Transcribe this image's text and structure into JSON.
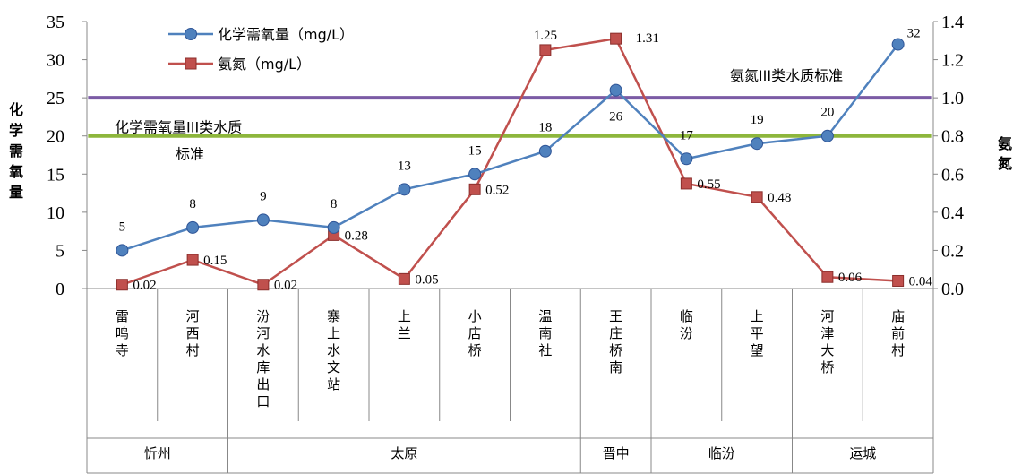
{
  "chart_data": {
    "type": "line",
    "categories": [
      "雷鸣寺",
      "河西村",
      "汾河水库出口",
      "寨上水文站",
      "上兰",
      "小店桥",
      "温南社",
      "王庄桥南",
      "临汾",
      "上平望",
      "河津大桥",
      "庙前村"
    ],
    "groups": [
      {
        "label": "忻州",
        "count": 2
      },
      {
        "label": "太原",
        "count": 5
      },
      {
        "label": "晋中",
        "count": 1
      },
      {
        "label": "临汾",
        "count": 2
      },
      {
        "label": "运城",
        "count": 2
      }
    ],
    "series": [
      {
        "name": "化学需氧量（mg/L）",
        "axis": "left",
        "color": "#4F81BD",
        "values": [
          5,
          8,
          9,
          8,
          13,
          15,
          18,
          26,
          17,
          19,
          20,
          32
        ],
        "labels": [
          "5",
          "8",
          "9",
          "8",
          "13",
          "15",
          "18",
          "26",
          "17",
          "19",
          "20",
          "32"
        ]
      },
      {
        "name": "氨氮（mg/L）",
        "axis": "right",
        "color": "#C0504D",
        "values": [
          0.02,
          0.15,
          0.02,
          0.28,
          0.05,
          0.52,
          1.25,
          1.31,
          0.55,
          0.48,
          0.06,
          0.04
        ],
        "labels": [
          "0.02",
          "0.15",
          "0.02",
          "0.28",
          "0.05",
          "0.52",
          "1.25",
          "1.31",
          "0.55",
          "0.48",
          "0.06",
          "0.04"
        ]
      }
    ],
    "reference_lines": [
      {
        "label": "氨氮III类水质标准",
        "axis": "right",
        "value": 1.0,
        "color": "#7B5BA5"
      },
      {
        "label_lines": [
          "化学需氧量III类水质",
          "标准"
        ],
        "axis": "left",
        "value": 20,
        "color": "#8DB63C"
      }
    ],
    "left_axis": {
      "label": "化学需氧量",
      "min": 0,
      "max": 35,
      "ticks": [
        "0",
        "5",
        "10",
        "15",
        "20",
        "25",
        "30",
        "35"
      ]
    },
    "right_axis": {
      "label": "氨氮",
      "min": 0,
      "max": 1.4,
      "ticks": [
        "0.0",
        "0.2",
        "0.4",
        "0.6",
        "0.8",
        "1.0",
        "1.2",
        "1.4"
      ]
    },
    "grid": false,
    "legend_position": "top-left"
  }
}
